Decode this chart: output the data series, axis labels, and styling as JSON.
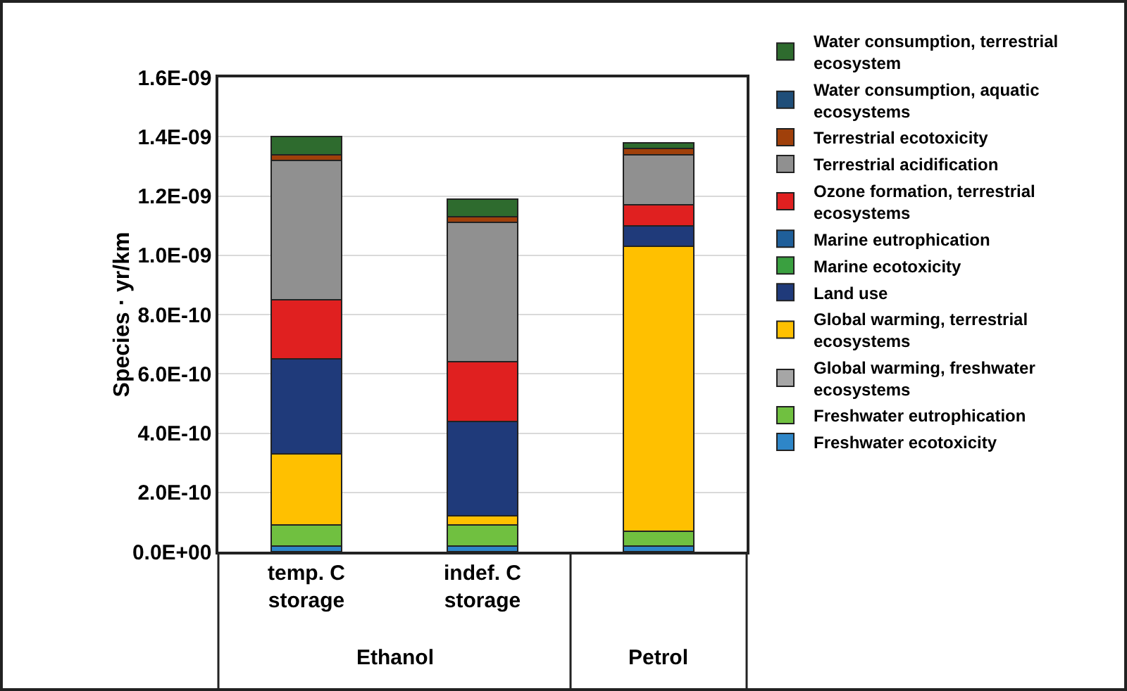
{
  "chart_data": {
    "type": "bar",
    "stacked": true,
    "ylabel": "Species · yr/km",
    "categories": [
      "temp. C storage",
      "indef. C storage",
      null
    ],
    "annotations": [
      "Ethanol",
      "Petrol"
    ],
    "series": [
      {
        "name": "Freshwater ecotoxicity",
        "color": "#2e86c8",
        "values": [
          2e-11,
          2e-11,
          2e-11
        ]
      },
      {
        "name": "Freshwater eutrophication",
        "color": "#70c040",
        "values": [
          7e-11,
          7e-11,
          5e-11
        ]
      },
      {
        "name": "Global warming, freshwater ecosystems",
        "color": "#a6a6a6",
        "values": [
          0,
          0,
          0
        ]
      },
      {
        "name": "Global warming, terrestrial ecosystems",
        "color": "#ffc000",
        "values": [
          2.4e-10,
          3e-11,
          9.6e-10
        ]
      },
      {
        "name": "Land use",
        "color": "#1f3a7a",
        "values": [
          3.2e-10,
          3.2e-10,
          7e-11
        ]
      },
      {
        "name": "Marine ecotoxicity",
        "color": "#3aa040",
        "values": [
          0,
          0,
          0
        ]
      },
      {
        "name": "Marine eutrophication",
        "color": "#1f5f9a",
        "values": [
          0,
          0,
          0
        ]
      },
      {
        "name": "Ozone formation, terrestrial ecosystems",
        "color": "#e02020",
        "values": [
          2e-10,
          2e-10,
          7e-11
        ]
      },
      {
        "name": "Terrestrial acidification",
        "color": "#909090",
        "values": [
          4.7e-10,
          4.7e-10,
          1.7e-10
        ]
      },
      {
        "name": "Terrestrial ecotoxicity",
        "color": "#a0400a",
        "values": [
          2e-11,
          2e-11,
          2e-11
        ]
      },
      {
        "name": "Water consumption, aquatic ecosystems",
        "color": "#1f4e79",
        "values": [
          0,
          0,
          0
        ]
      },
      {
        "name": "Water consumption, terrestrial ecosystem",
        "color": "#2e6b2e",
        "values": [
          6e-11,
          6e-11,
          2e-11
        ]
      }
    ],
    "ylim": [
      0,
      1.6e-09
    ],
    "yticks": [
      {
        "value": 0,
        "label": "0.0E+00"
      },
      {
        "value": 2e-10,
        "label": "2.0E-10"
      },
      {
        "value": 4e-10,
        "label": "4.0E-10"
      },
      {
        "value": 6e-10,
        "label": "6.0E-10"
      },
      {
        "value": 8e-10,
        "label": "8.0E-10"
      },
      {
        "value": 1e-09,
        "label": "1.0E-09"
      },
      {
        "value": 1.2e-09,
        "label": "1.2E-09"
      },
      {
        "value": 1.4e-09,
        "label": "1.4E-09"
      },
      {
        "value": 1.6e-09,
        "label": "1.6E-09"
      }
    ],
    "grid": "y",
    "legend": "right"
  }
}
